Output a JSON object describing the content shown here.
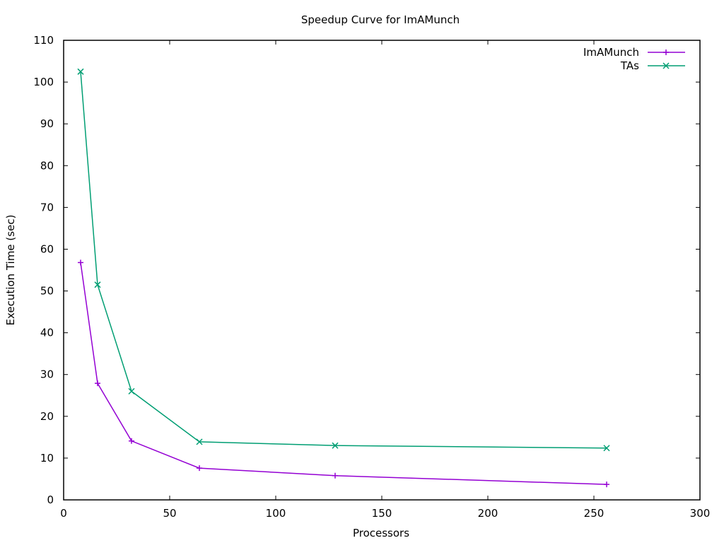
{
  "chart_data": {
    "type": "line",
    "title": "Speedup Curve for ImAMunch",
    "xlabel": "Processors",
    "ylabel": "Execution Time (sec)",
    "xlim": [
      0,
      300
    ],
    "ylim": [
      0,
      110
    ],
    "xticks": [
      0,
      50,
      100,
      150,
      200,
      250,
      300
    ],
    "yticks": [
      0,
      10,
      20,
      30,
      40,
      50,
      60,
      70,
      80,
      90,
      100,
      110
    ],
    "grid": false,
    "legend_position": "top-right",
    "series": [
      {
        "name": "ImAMunch",
        "color": "#9400d3",
        "marker": "plus",
        "x": [
          8,
          16,
          32,
          64,
          128,
          256
        ],
        "y": [
          56.8,
          27.9,
          14.1,
          7.6,
          5.8,
          3.7
        ]
      },
      {
        "name": "TAs",
        "color": "#009e73",
        "marker": "cross",
        "x": [
          8,
          16,
          32,
          64,
          128,
          256
        ],
        "y": [
          102.5,
          51.5,
          26.0,
          13.9,
          13.0,
          12.4
        ]
      }
    ]
  }
}
